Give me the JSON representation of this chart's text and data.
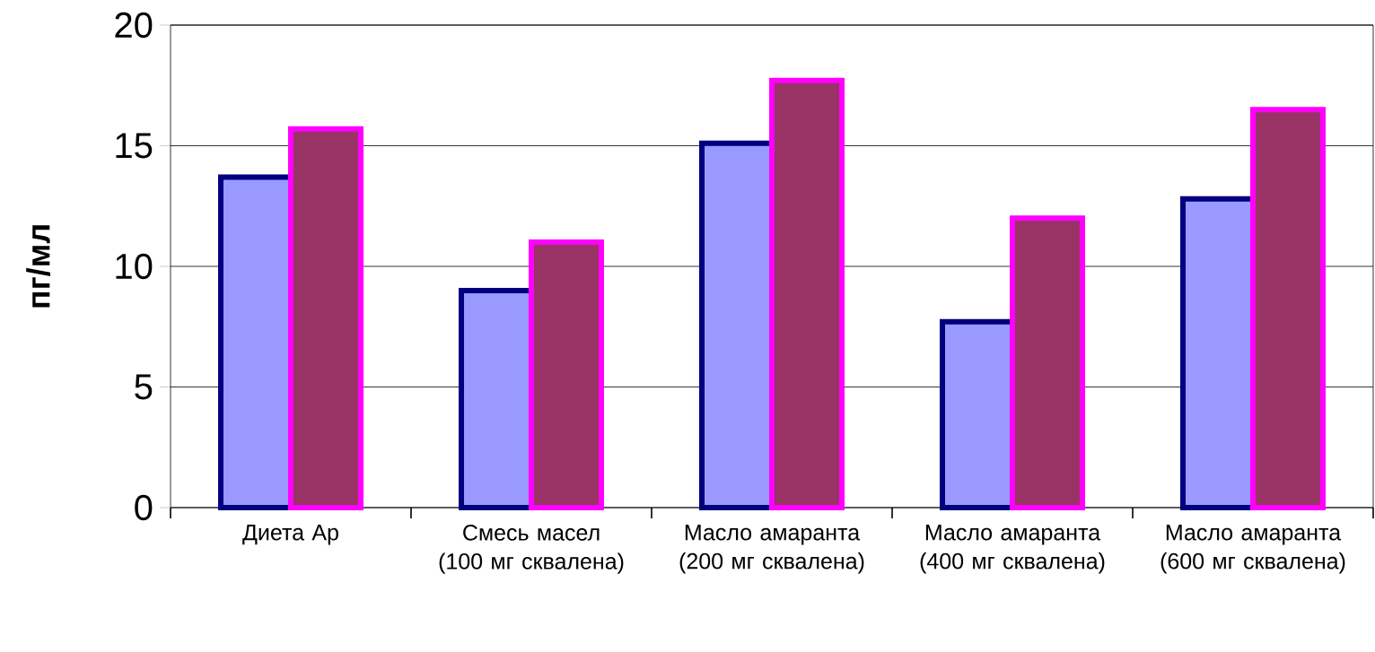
{
  "chart_data": {
    "type": "bar",
    "ylabel": "пг/мл",
    "categories": [
      "Диета Ар",
      "Смесь масел (100 мг сквалена)",
      "Масло амаранта (200 мг сквалена)",
      "Масло амаранта (400 мг сквалена)",
      "Масло амаранта (600 мг сквалена)"
    ],
    "series": [
      {
        "color": "#9999ff",
        "values": [
          13.7,
          9.0,
          15.1,
          7.7,
          12.8
        ]
      },
      {
        "color": "#993366",
        "values": [
          15.7,
          11.0,
          17.7,
          12.0,
          16.5
        ]
      }
    ],
    "ylim": [
      0,
      20
    ],
    "yticks": [
      0,
      5,
      10,
      15,
      20
    ],
    "grid": "y"
  }
}
